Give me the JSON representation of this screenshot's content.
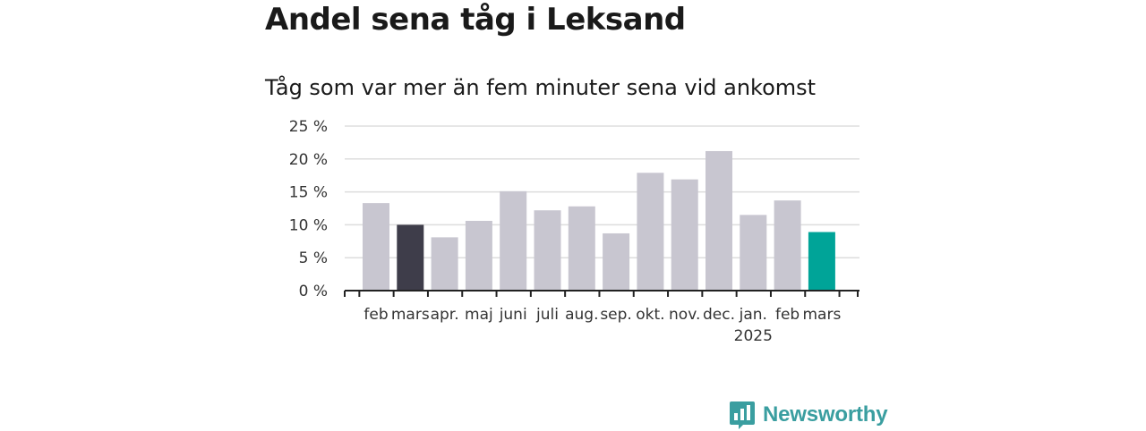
{
  "title": "Andel sena tåg i Leksand",
  "subtitle": "Tåg som var mer än fem minuter sena vid ankomst",
  "brand": {
    "name": "Newsworthy",
    "icon": "newsworthy-logo-icon",
    "color": "#3a9ea0"
  },
  "chart_data": {
    "type": "bar",
    "title": "Andel sena tåg i Leksand",
    "subtitle": "Tåg som var mer än fem minuter sena vid ankomst",
    "xlabel": "",
    "ylabel": "",
    "categories": [
      "feb",
      "mars",
      "apr.",
      "maj",
      "juni",
      "juli",
      "aug.",
      "sep.",
      "okt.",
      "nov.",
      "dec.",
      "jan.",
      "feb",
      "mars"
    ],
    "year_labels": [
      "",
      "",
      "",
      "",
      "",
      "",
      "",
      "",
      "",
      "",
      "",
      "2025",
      "",
      ""
    ],
    "values": [
      13.3,
      10.0,
      8.1,
      10.6,
      15.1,
      12.2,
      12.8,
      8.7,
      17.9,
      16.9,
      21.2,
      11.5,
      13.7,
      8.9
    ],
    "bar_colors": [
      "#c8c6d0",
      "#3e3d4a",
      "#c8c6d0",
      "#c8c6d0",
      "#c8c6d0",
      "#c8c6d0",
      "#c8c6d0",
      "#c8c6d0",
      "#c8c6d0",
      "#c8c6d0",
      "#c8c6d0",
      "#c8c6d0",
      "#c8c6d0",
      "#00a498"
    ],
    "ylim": [
      0,
      25
    ],
    "yticks": [
      0,
      5,
      10,
      15,
      20,
      25
    ],
    "ytick_suffix": " %",
    "grid": true,
    "legend": "none",
    "colors": {
      "default_bar": "#c8c6d0",
      "previous_year_bar": "#3e3d4a",
      "current_bar": "#00a498",
      "gridline": "#dddddd",
      "axis": "#222222"
    }
  }
}
